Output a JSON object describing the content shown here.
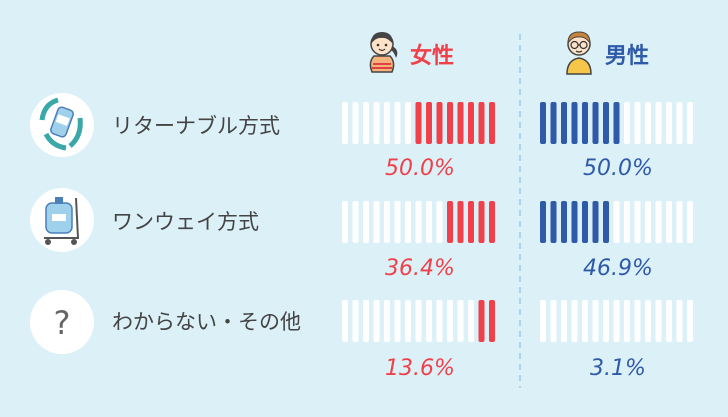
{
  "chart_data": {
    "type": "bar",
    "categories": [
      "リターナブル方式",
      "ワンウェイ方式",
      "わからない・その他"
    ],
    "series": [
      {
        "name": "女性",
        "values": [
          50.0,
          36.4,
          13.6
        ],
        "labels": [
          "50.0%",
          "36.4%",
          "13.6%"
        ],
        "color": "#f0404a"
      },
      {
        "name": "男性",
        "values": [
          50.0,
          46.9,
          3.1
        ],
        "labels": [
          "50.0%",
          "46.9%",
          "3.1%"
        ],
        "color": "#2e5aa8"
      }
    ],
    "ylim": [
      0,
      100
    ],
    "unit": "%",
    "segments_per_bar": 15
  },
  "colors": {
    "background": "#dcf0f8",
    "empty_segment": "#ffffff",
    "divider": "#a9d4ea",
    "icon_circle": "#ffffff"
  },
  "icons": [
    "recycle-bottle-icon",
    "water-cart-icon",
    "question-icon"
  ],
  "question_mark": "?"
}
